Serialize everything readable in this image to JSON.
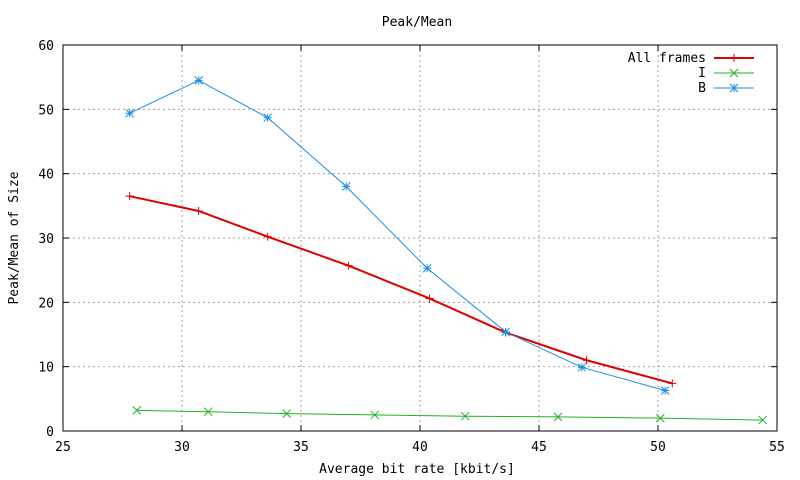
{
  "chart_data": {
    "type": "line",
    "title": "Peak/Mean",
    "xlabel": "Average bit rate [kbit/s]",
    "ylabel": "Peak/Mean of Size",
    "xlim": [
      25,
      55
    ],
    "ylim": [
      0,
      60
    ],
    "xticks": [
      25,
      30,
      35,
      40,
      45,
      50,
      55
    ],
    "yticks": [
      0,
      10,
      20,
      30,
      40,
      50,
      60
    ],
    "grid": true,
    "legend_position": "top-right",
    "series": [
      {
        "name": "All frames",
        "color": "#e00000",
        "marker": "plus",
        "x": [
          27.8,
          30.7,
          33.6,
          37.0,
          40.4,
          43.6,
          47.0,
          50.6
        ],
        "y": [
          36.5,
          34.2,
          30.2,
          25.7,
          20.6,
          15.3,
          11.0,
          7.4
        ]
      },
      {
        "name": "I",
        "color": "#22b022",
        "marker": "cross",
        "x": [
          28.1,
          31.1,
          34.4,
          38.1,
          41.9,
          45.8,
          50.1,
          54.4
        ],
        "y": [
          3.2,
          3.0,
          2.7,
          2.5,
          2.3,
          2.2,
          2.0,
          1.7
        ]
      },
      {
        "name": "B",
        "color": "#1a8ee0",
        "marker": "star",
        "x": [
          27.8,
          30.7,
          33.6,
          36.9,
          40.3,
          43.6,
          46.8,
          50.3
        ],
        "y": [
          49.4,
          54.5,
          48.7,
          38.0,
          25.3,
          15.4,
          9.9,
          6.3
        ]
      }
    ]
  }
}
